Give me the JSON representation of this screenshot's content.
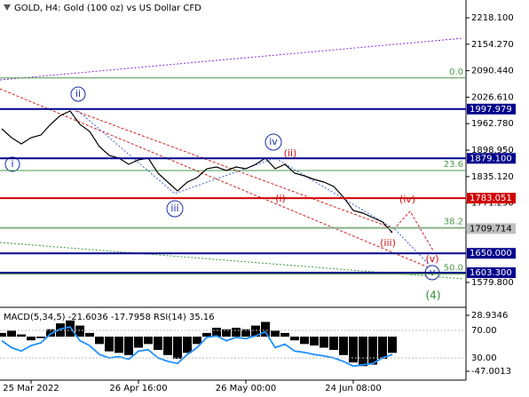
{
  "chart_data": {
    "type": "line",
    "title": "GOLD, H4:  Gold (100 oz) vs US Dollar CFD",
    "categories": [
      null,
      null,
      null,
      "25 Mar 2022",
      null,
      null,
      null,
      null,
      null,
      null,
      null,
      null,
      null,
      null,
      "26 Apr 16:00",
      null,
      null,
      null,
      null,
      null,
      null,
      null,
      null,
      null,
      null,
      "26 May 00:00",
      null,
      null,
      null,
      null,
      null,
      null,
      null,
      null,
      null,
      null,
      "24 Jun 08:00",
      null,
      null,
      null,
      null
    ],
    "series": [
      {
        "name": "GOLD",
        "color": "#000000",
        "values": [
          1950.4,
          1929.0,
          1914.0,
          1929.0,
          1935.4,
          1961.1,
          1982.5,
          1993.2,
          1961.1,
          1944.0,
          1907.5,
          1886.1,
          1879.7,
          1864.7,
          1875.4,
          1879.7,
          1843.3,
          1821.9,
          1800.4,
          1821.9,
          1832.6,
          1854.0,
          1858.3,
          1849.7,
          1858.3,
          1854.0,
          1864.7,
          1879.7,
          1854.0,
          1864.7,
          1843.3,
          1836.9,
          1828.3,
          1821.9,
          1811.2,
          1785.5,
          1753.3,
          1746.9,
          1736.2,
          1725.5,
          1699.8
        ]
      }
    ],
    "ylim": [
      1522,
      2261
    ],
    "yticks": [
      {
        "value": 2218.1,
        "label": "2218.100"
      },
      {
        "value": 2154.27,
        "label": "2154.270"
      },
      {
        "value": 2090.44,
        "label": "2090.440"
      },
      {
        "value": 2026.61,
        "label": "2026.610"
      },
      {
        "value": 1962.78,
        "label": "1962.780"
      },
      {
        "value": 1898.95,
        "label": "1898.950"
      },
      {
        "value": 1835.12,
        "label": "1835.120"
      },
      {
        "value": 1771.29,
        "label": "1771.290"
      },
      {
        "value": 1579.8,
        "label": "1579.800"
      }
    ],
    "grid": false,
    "levels": [
      {
        "value": 1997.979,
        "color": "#00008b"
      },
      {
        "value": {
          "value": 1879.1,
          "label": "1879.100"
        },
        "color": "#00008b"
      },
      {
        "value": 1783.051,
        "color": "#d00000"
      },
      {
        "value": 1709.714,
        "color": "#c0c0c0"
      },
      {
        "value": {
          "value": 1650,
          "label": "1650.000"
        },
        "color": "#00008b"
      },
      {
        "value": {
          "value": 1603.3,
          "label": "1603.300"
        },
        "color": "#00008b"
      }
    ],
    "fib": [
      {
        "label": "0.0",
        "price": 2073
      },
      {
        "label": "23.6",
        "price": 1849.7
      },
      {
        "label": "38.2",
        "price": 1712
      },
      {
        "label": "50.0",
        "price": 1600
      }
    ],
    "fib_color": "#4a9a4a",
    "waves": {
      "blue": [
        "i",
        "ii",
        "iii",
        "iv",
        "v"
      ],
      "red": [
        "(i)",
        "(ii)",
        "(iii)",
        "(iv)",
        "(v)"
      ],
      "green": [
        "(4)"
      ]
    },
    "indicator": {
      "title": "MACD(5,34,5) -21.6036 -17.7958 RSI(14) 35.16",
      "macd": [
        5,
        8,
        3,
        -5,
        -2,
        10,
        18,
        22,
        15,
        5,
        -10,
        -20,
        -22,
        -25,
        -15,
        -10,
        -18,
        -25,
        -30,
        -22,
        -10,
        5,
        12,
        10,
        12,
        10,
        15,
        20,
        8,
        5,
        -5,
        -10,
        -12,
        -15,
        -18,
        -25,
        -35,
        -40,
        -38,
        -30,
        -22
      ],
      "rsi": [
        55,
        45,
        40,
        48,
        52,
        65,
        72,
        75,
        55,
        48,
        35,
        30,
        32,
        28,
        40,
        42,
        30,
        25,
        22,
        35,
        45,
        60,
        62,
        55,
        60,
        58,
        62,
        68,
        45,
        50,
        40,
        38,
        35,
        33,
        30,
        25,
        18,
        20,
        22,
        30,
        35
      ],
      "macd_lim": [
        -55.4,
        37.4
      ],
      "macd_ticks": [
        28.9346,
        -47.0013
      ],
      "rsi_lim": [
        1.6,
        101
      ],
      "rsi_ticks": [
        {
          "value": 70,
          "label": "70.00"
        },
        {
          "value": 30,
          "label": "30.00"
        }
      ],
      "rsi_color": "#1e90ff"
    }
  }
}
